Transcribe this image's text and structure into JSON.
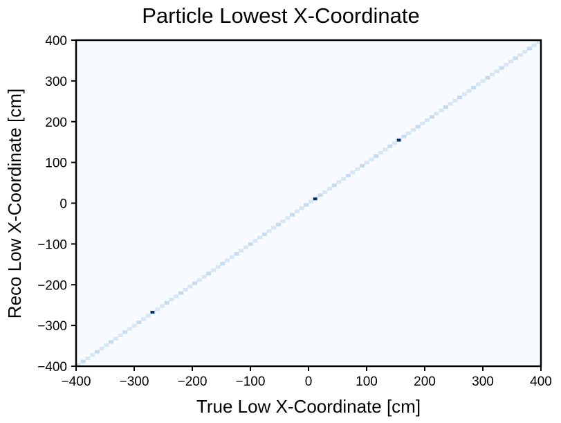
{
  "chart_data": {
    "type": "heatmap",
    "title": "Particle Lowest X-Coordinate",
    "xlabel": "True Low X-Coordinate [cm]",
    "ylabel": "Reco Low X-Coordinate [cm]",
    "xlim": [
      -400,
      400
    ],
    "ylim": [
      -400,
      400
    ],
    "xticks": [
      -400,
      -300,
      -200,
      -100,
      0,
      100,
      200,
      300,
      400
    ],
    "yticks": [
      -400,
      -300,
      -200,
      -100,
      0,
      100,
      200,
      300,
      400
    ],
    "xtick_labels": [
      "−400",
      "−300",
      "−200",
      "−100",
      "0",
      "100",
      "200",
      "300",
      "400"
    ],
    "ytick_labels": [
      "−400",
      "−300",
      "−200",
      "−100",
      "0",
      "100",
      "200",
      "300",
      "400"
    ],
    "colormap": "Blues",
    "colors": {
      "background": "#f7fbff",
      "diagonal_light": "#d6e6f4",
      "diagonal_mid": "#c6dbef",
      "hot": "#08306b"
    },
    "bin_width": 8,
    "diagonal": {
      "from": -400,
      "to": 400,
      "relative_intensity": 0.15
    },
    "hot_bins": [
      {
        "x": -268,
        "y": -266,
        "relative_intensity": 1.0
      },
      {
        "x": 12,
        "y": 12,
        "relative_intensity": 1.0
      },
      {
        "x": 156,
        "y": 156,
        "relative_intensity": 1.0
      }
    ],
    "grid": false,
    "legend": "none"
  }
}
